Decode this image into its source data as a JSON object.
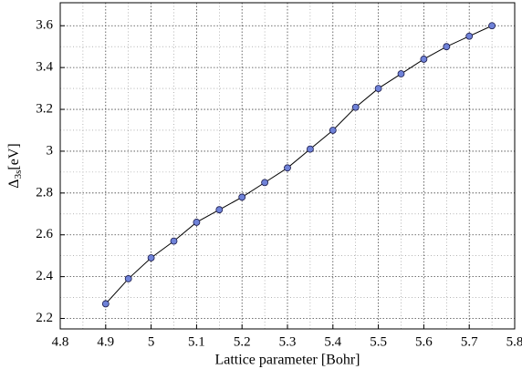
{
  "chart_data": {
    "type": "line",
    "xlabel": "Lattice parameter [Bohr]",
    "ylabel": {
      "main": "Δ",
      "sub": "3s",
      "rest": "[eV]"
    },
    "x": [
      4.9,
      4.95,
      5.0,
      5.05,
      5.1,
      5.15,
      5.2,
      5.25,
      5.3,
      5.35,
      5.4,
      5.45,
      5.5,
      5.55,
      5.6,
      5.65,
      5.7,
      5.75
    ],
    "series": [
      {
        "color": "#6f82d8",
        "values": [
          2.27,
          2.39,
          2.49,
          2.57,
          2.66,
          2.72,
          2.78,
          2.85,
          2.92,
          3.01,
          3.1,
          3.21,
          3.3,
          3.37,
          3.44,
          3.5,
          3.55,
          3.6
        ]
      }
    ],
    "xlim": [
      4.8,
      5.8
    ],
    "xticks": [
      4.8,
      4.9,
      5,
      5.1,
      5.2,
      5.3,
      5.4,
      5.5,
      5.6,
      5.7,
      5.8
    ],
    "ylim": [
      2.15,
      3.71
    ],
    "yticks": [
      2.2,
      2.4,
      2.6,
      2.8,
      3,
      3.2,
      3.4,
      3.6
    ],
    "grid": true,
    "minor_grid": true,
    "markers": true
  }
}
